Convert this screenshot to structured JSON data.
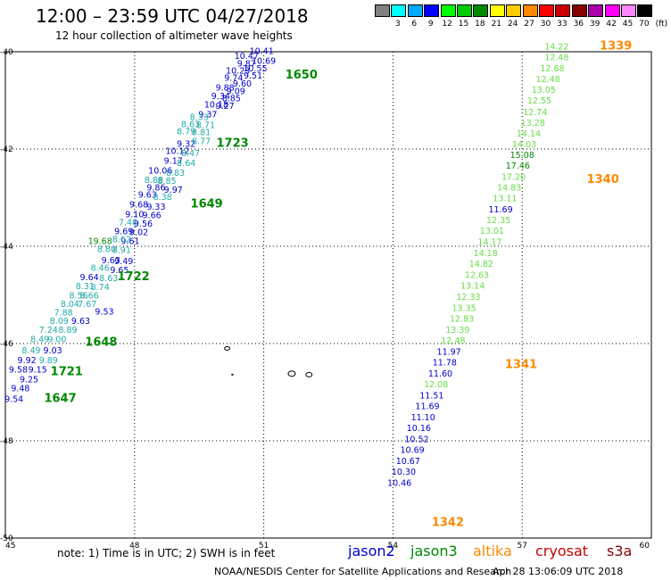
{
  "header": {
    "title": "12:00 – 23:59 UTC 04/27/2018",
    "subtitle": "12 hour collection of altimeter wave heights"
  },
  "color_scale": {
    "unit": "(ft)",
    "colors": [
      "#808080",
      "#00ffff",
      "#00aaff",
      "#0000ff",
      "#00ff00",
      "#00cc00",
      "#008800",
      "#ffff00",
      "#ffcc00",
      "#ff8800",
      "#ff0000",
      "#cc0000",
      "#880000",
      "#aa00aa",
      "#ff00ff",
      "#ff88ff",
      "#000000"
    ],
    "ticks": [
      "3",
      "6",
      "9",
      "12",
      "15",
      "18",
      "21",
      "24",
      "27",
      "30",
      "33",
      "36",
      "39",
      "42",
      "45",
      "70"
    ]
  },
  "axes": {
    "x_ticks": [
      "45",
      "48",
      "51",
      "54",
      "57",
      "60"
    ],
    "y_ticks": [
      "-40",
      "-42",
      "-44",
      "-46",
      "-48",
      "-50"
    ],
    "xlim": [
      45,
      60
    ],
    "ylim": [
      -50,
      -40
    ]
  },
  "series_colors": {
    "jason2": "#0000cc",
    "jason3": "#008800",
    "altika": "#ff8800",
    "cryosat": "#cc0000",
    "s3a": "#880000",
    "jason3_light": "#22aaaa",
    "swh_green": "#33cc33",
    "pass_label_green": "#008800"
  },
  "passes": {
    "pass_1650": {
      "label": "1650",
      "lon": 51.5,
      "lat": -40.55,
      "label_color": "#008800"
    },
    "pass_1723": {
      "label": "1723",
      "lon": 49.9,
      "lat": -41.95,
      "label_color": "#008800"
    },
    "pass_1649": {
      "label": "1649",
      "lon": 49.3,
      "lat": -43.2,
      "label_color": "#008800"
    },
    "pass_1722": {
      "label": "1722",
      "lon": 47.6,
      "lat": -44.7,
      "label_color": "#008800"
    },
    "pass_1648": {
      "label": "1648",
      "lon": 46.85,
      "lat": -46.05,
      "label_color": "#008800"
    },
    "pass_1721": {
      "label": "1721",
      "lon": 46.05,
      "lat": -46.65,
      "label_color": "#008800"
    },
    "pass_1647": {
      "label": "1647",
      "lon": 45.9,
      "lat": -47.2,
      "label_color": "#008800"
    },
    "pass_1339": {
      "label": "1339",
      "lon": 58.8,
      "lat": -39.95,
      "label_color": "#ff8800"
    },
    "pass_1340": {
      "label": "1340",
      "lon": 58.5,
      "lat": -42.7,
      "label_color": "#ff8800"
    },
    "pass_1341": {
      "label": "1341",
      "lon": 56.6,
      "lat": -46.5,
      "label_color": "#ff8800"
    },
    "pass_1342": {
      "label": "1342",
      "lon": 54.9,
      "lat": -49.75,
      "label_color": "#ff8800"
    }
  },
  "track_values": {
    "west_blue": [
      {
        "v": "10.41",
        "lon": 50.95,
        "lat": -40.05,
        "c": "#0000cc"
      },
      {
        "v": "10.47",
        "lon": 50.6,
        "lat": -40.15,
        "c": "#0000cc"
      },
      {
        "v": "10.69",
        "lon": 51.0,
        "lat": -40.25,
        "c": "#0000cc"
      },
      {
        "v": "9.87",
        "lon": 50.6,
        "lat": -40.3,
        "c": "#0000cc"
      },
      {
        "v": "10.23",
        "lon": 50.4,
        "lat": -40.45,
        "c": "#0000cc"
      },
      {
        "v": "10.55",
        "lon": 50.8,
        "lat": -40.4,
        "c": "#0000cc"
      },
      {
        "v": "9.74",
        "lon": 50.3,
        "lat": -40.6,
        "c": "#0000cc"
      },
      {
        "v": "9.51",
        "lon": 50.75,
        "lat": -40.55,
        "c": "#0000cc"
      },
      {
        "v": "9.60",
        "lon": 50.5,
        "lat": -40.72,
        "c": "#0000cc"
      },
      {
        "v": "9.88",
        "lon": 50.1,
        "lat": -40.8,
        "c": "#0000cc"
      },
      {
        "v": "9.09",
        "lon": 50.35,
        "lat": -40.87,
        "c": "#0000cc"
      },
      {
        "v": "9.34",
        "lon": 50.0,
        "lat": -40.97,
        "c": "#0000cc"
      },
      {
        "v": "8.85",
        "lon": 50.25,
        "lat": -41.02,
        "c": "#0000cc"
      },
      {
        "v": "10.18",
        "lon": 49.9,
        "lat": -41.15,
        "c": "#0000cc"
      },
      {
        "v": "9.27",
        "lon": 50.1,
        "lat": -41.17,
        "c": "#0000cc"
      },
      {
        "v": "9.37",
        "lon": 49.7,
        "lat": -41.35,
        "c": "#0000cc"
      },
      {
        "v": "9.32",
        "lon": 49.2,
        "lat": -41.95,
        "c": "#0000cc"
      },
      {
        "v": "10.12",
        "lon": 49.0,
        "lat": -42.1,
        "c": "#0000cc"
      },
      {
        "v": "9.17",
        "lon": 48.9,
        "lat": -42.3,
        "c": "#0000cc"
      },
      {
        "v": "10.06",
        "lon": 48.6,
        "lat": -42.5,
        "c": "#0000cc"
      },
      {
        "v": "9.86",
        "lon": 48.5,
        "lat": -42.85,
        "c": "#0000cc"
      },
      {
        "v": "9.97",
        "lon": 48.9,
        "lat": -42.9,
        "c": "#0000cc"
      },
      {
        "v": "9.63",
        "lon": 48.3,
        "lat": -43.0,
        "c": "#0000cc"
      },
      {
        "v": "9.68",
        "lon": 48.1,
        "lat": -43.2,
        "c": "#0000cc"
      },
      {
        "v": "9.33",
        "lon": 48.5,
        "lat": -43.25,
        "c": "#0000cc"
      },
      {
        "v": "9.10",
        "lon": 48.0,
        "lat": -43.4,
        "c": "#0000cc"
      },
      {
        "v": "9.66",
        "lon": 48.4,
        "lat": -43.42,
        "c": "#0000cc"
      },
      {
        "v": "9.56",
        "lon": 48.2,
        "lat": -43.6,
        "c": "#0000cc"
      },
      {
        "v": "9.69",
        "lon": 47.75,
        "lat": -43.75,
        "c": "#0000cc"
      },
      {
        "v": "9.02",
        "lon": 48.1,
        "lat": -43.77,
        "c": "#0000cc"
      },
      {
        "v": "9.61",
        "lon": 47.9,
        "lat": -43.95,
        "c": "#0000cc"
      },
      {
        "v": "9.63",
        "lon": 47.45,
        "lat": -44.35,
        "c": "#0000cc"
      },
      {
        "v": "9.49",
        "lon": 47.75,
        "lat": -44.37,
        "c": "#0000cc"
      },
      {
        "v": "9.65",
        "lon": 47.65,
        "lat": -44.55,
        "c": "#0000cc"
      },
      {
        "v": "9.64",
        "lon": 46.95,
        "lat": -44.7,
        "c": "#0000cc"
      },
      {
        "v": "9.53",
        "lon": 47.3,
        "lat": -45.4,
        "c": "#0000cc"
      },
      {
        "v": "9.63",
        "lon": 46.75,
        "lat": -45.6,
        "c": "#0000cc"
      },
      {
        "v": "9.03",
        "lon": 46.1,
        "lat": -46.2,
        "c": "#0000cc"
      },
      {
        "v": "9.92",
        "lon": 45.5,
        "lat": -46.4,
        "c": "#0000cc"
      },
      {
        "v": "9.58",
        "lon": 45.3,
        "lat": -46.6,
        "c": "#0000cc"
      },
      {
        "v": "9.15",
        "lon": 45.75,
        "lat": -46.6,
        "c": "#0000cc"
      },
      {
        "v": "9.25",
        "lon": 45.55,
        "lat": -46.8,
        "c": "#0000cc"
      },
      {
        "v": "9.48",
        "lon": 45.35,
        "lat": -46.98,
        "c": "#0000cc"
      },
      {
        "v": "9.54",
        "lon": 45.2,
        "lat": -47.2,
        "c": "#0000cc"
      }
    ],
    "west_cyan": [
      {
        "v": "8.33",
        "lon": 49.5,
        "lat": -41.4,
        "c": "#22aaaa"
      },
      {
        "v": "8.63",
        "lon": 49.3,
        "lat": -41.55,
        "c": "#22aaaa"
      },
      {
        "v": "8.71",
        "lon": 49.65,
        "lat": -41.57,
        "c": "#22aaaa"
      },
      {
        "v": "8.79",
        "lon": 49.2,
        "lat": -41.7,
        "c": "#22aaaa"
      },
      {
        "v": "8.81",
        "lon": 49.55,
        "lat": -41.72,
        "c": "#22aaaa"
      },
      {
        "v": "8.77",
        "lon": 49.55,
        "lat": -41.9,
        "c": "#22aaaa"
      },
      {
        "v": "8.47",
        "lon": 49.3,
        "lat": -42.15,
        "c": "#22aaaa"
      },
      {
        "v": "8.64",
        "lon": 49.2,
        "lat": -42.35,
        "c": "#22aaaa"
      },
      {
        "v": "8.83",
        "lon": 48.95,
        "lat": -42.55,
        "c": "#22aaaa"
      },
      {
        "v": "8.88",
        "lon": 48.45,
        "lat": -42.7,
        "c": "#22aaaa"
      },
      {
        "v": "8.85",
        "lon": 48.75,
        "lat": -42.72,
        "c": "#22aaaa"
      },
      {
        "v": "8.38",
        "lon": 48.65,
        "lat": -43.05,
        "c": "#22aaaa"
      },
      {
        "v": "7.40",
        "lon": 47.85,
        "lat": -43.57,
        "c": "#22aaaa"
      },
      {
        "v": "8.62",
        "lon": 47.7,
        "lat": -43.92,
        "c": "#22aaaa"
      },
      {
        "v": "8.80",
        "lon": 47.35,
        "lat": -44.12,
        "c": "#22aaaa"
      },
      {
        "v": "8.91",
        "lon": 47.7,
        "lat": -44.14,
        "c": "#22aaaa"
      },
      {
        "v": "8.46",
        "lon": 47.2,
        "lat": -44.5,
        "c": "#22aaaa"
      },
      {
        "v": "8.63",
        "lon": 47.4,
        "lat": -44.72,
        "c": "#22aaaa"
      },
      {
        "v": "8.74",
        "lon": 47.2,
        "lat": -44.9,
        "c": "#22aaaa"
      },
      {
        "v": "8.31",
        "lon": 46.85,
        "lat": -44.88,
        "c": "#22aaaa"
      },
      {
        "v": "8.56",
        "lon": 46.7,
        "lat": -45.07,
        "c": "#22aaaa"
      },
      {
        "v": "8.66",
        "lon": 46.95,
        "lat": -45.07,
        "c": "#22aaaa"
      },
      {
        "v": "8.04",
        "lon": 46.5,
        "lat": -45.25,
        "c": "#22aaaa"
      },
      {
        "v": "7.67",
        "lon": 46.9,
        "lat": -45.25,
        "c": "#22aaaa"
      },
      {
        "v": "7.88",
        "lon": 46.35,
        "lat": -45.42,
        "c": "#22aaaa"
      },
      {
        "v": "8.09",
        "lon": 46.25,
        "lat": -45.6,
        "c": "#22aaaa"
      },
      {
        "v": "7.24",
        "lon": 46.0,
        "lat": -45.78,
        "c": "#22aaaa"
      },
      {
        "v": "8.89",
        "lon": 46.45,
        "lat": -45.78,
        "c": "#22aaaa"
      },
      {
        "v": "8.49",
        "lon": 45.8,
        "lat": -45.97,
        "c": "#22aaaa"
      },
      {
        "v": "9.00",
        "lon": 46.2,
        "lat": -45.97,
        "c": "#22aaaa"
      },
      {
        "v": "8.49",
        "lon": 45.6,
        "lat": -46.2,
        "c": "#22aaaa"
      },
      {
        "v": "9.89",
        "lon": 46.0,
        "lat": -46.4,
        "c": "#22aaaa"
      }
    ],
    "west_green": [
      {
        "v": "19.68",
        "lon": 47.2,
        "lat": -43.95,
        "c": "#008800"
      }
    ],
    "east_green": [
      {
        "v": "14.22",
        "lon": 57.8,
        "lat": -39.95,
        "c": "#66dd44"
      },
      {
        "v": "12.48",
        "lon": 57.8,
        "lat": -40.17,
        "c": "#66dd44"
      },
      {
        "v": "12.68",
        "lon": 57.7,
        "lat": -40.4,
        "c": "#66dd44"
      },
      {
        "v": "12.48",
        "lon": 57.6,
        "lat": -40.62,
        "c": "#66dd44"
      },
      {
        "v": "13.05",
        "lon": 57.5,
        "lat": -40.84,
        "c": "#66dd44"
      },
      {
        "v": "12.55",
        "lon": 57.4,
        "lat": -41.06,
        "c": "#66dd44"
      },
      {
        "v": "12.74",
        "lon": 57.3,
        "lat": -41.3,
        "c": "#66dd44"
      },
      {
        "v": "13.28",
        "lon": 57.25,
        "lat": -41.52,
        "c": "#66dd44"
      },
      {
        "v": "14.14",
        "lon": 57.15,
        "lat": -41.74,
        "c": "#66dd44"
      },
      {
        "v": "14.03",
        "lon": 57.05,
        "lat": -41.96,
        "c": "#66dd44"
      },
      {
        "v": "15.08",
        "lon": 57.0,
        "lat": -42.18,
        "c": "#008800"
      },
      {
        "v": "17.46",
        "lon": 56.9,
        "lat": -42.4,
        "c": "#008800"
      },
      {
        "v": "17.20",
        "lon": 56.8,
        "lat": -42.63,
        "c": "#66dd44"
      },
      {
        "v": "14.83",
        "lon": 56.7,
        "lat": -42.85,
        "c": "#66dd44"
      },
      {
        "v": "13.11",
        "lon": 56.6,
        "lat": -43.07,
        "c": "#66dd44"
      },
      {
        "v": "11.69",
        "lon": 56.5,
        "lat": -43.3,
        "c": "#0000cc"
      },
      {
        "v": "12.35",
        "lon": 56.45,
        "lat": -43.52,
        "c": "#66dd44"
      },
      {
        "v": "13.01",
        "lon": 56.3,
        "lat": -43.74,
        "c": "#66dd44"
      },
      {
        "v": "14.17",
        "lon": 56.25,
        "lat": -43.97,
        "c": "#66dd44"
      },
      {
        "v": "14.18",
        "lon": 56.15,
        "lat": -44.2,
        "c": "#66dd44"
      },
      {
        "v": "14.82",
        "lon": 56.05,
        "lat": -44.42,
        "c": "#66dd44"
      },
      {
        "v": "12.63",
        "lon": 55.95,
        "lat": -44.65,
        "c": "#66dd44"
      },
      {
        "v": "13.14",
        "lon": 55.85,
        "lat": -44.87,
        "c": "#66dd44"
      },
      {
        "v": "12.33",
        "lon": 55.75,
        "lat": -45.1,
        "c": "#66dd44"
      },
      {
        "v": "13.35",
        "lon": 55.65,
        "lat": -45.33,
        "c": "#66dd44"
      },
      {
        "v": "12.83",
        "lon": 55.6,
        "lat": -45.55,
        "c": "#66dd44"
      },
      {
        "v": "13.39",
        "lon": 55.5,
        "lat": -45.78,
        "c": "#66dd44"
      },
      {
        "v": "12.48",
        "lon": 55.4,
        "lat": -46.0,
        "c": "#66dd44"
      },
      {
        "v": "11.97",
        "lon": 55.3,
        "lat": -46.23,
        "c": "#0000cc"
      },
      {
        "v": "11.78",
        "lon": 55.2,
        "lat": -46.45,
        "c": "#0000cc"
      },
      {
        "v": "11.60",
        "lon": 55.1,
        "lat": -46.68,
        "c": "#0000cc"
      },
      {
        "v": "12.08",
        "lon": 55.0,
        "lat": -46.9,
        "c": "#66dd44"
      },
      {
        "v": "11.51",
        "lon": 54.9,
        "lat": -47.13,
        "c": "#0000cc"
      },
      {
        "v": "11.69",
        "lon": 54.8,
        "lat": -47.35,
        "c": "#0000cc"
      },
      {
        "v": "11.10",
        "lon": 54.7,
        "lat": -47.58,
        "c": "#0000cc"
      },
      {
        "v": "10.16",
        "lon": 54.6,
        "lat": -47.8,
        "c": "#0000cc"
      },
      {
        "v": "10.52",
        "lon": 54.55,
        "lat": -48.03,
        "c": "#0000cc"
      },
      {
        "v": "10.69",
        "lon": 54.45,
        "lat": -48.25,
        "c": "#0000cc"
      },
      {
        "v": "10.67",
        "lon": 54.35,
        "lat": -48.48,
        "c": "#0000cc"
      },
      {
        "v": "10.30",
        "lon": 54.25,
        "lat": -48.7,
        "c": "#0000cc"
      },
      {
        "v": "10.46",
        "lon": 54.15,
        "lat": -48.93,
        "c": "#0000cc"
      }
    ]
  },
  "footer": {
    "note": "note:  1) Time is in UTC;  2) SWH is in feet",
    "legend": [
      {
        "label": "jason2",
        "color": "#0000cc"
      },
      {
        "label": "jason3",
        "color": "#008800"
      },
      {
        "label": "altika",
        "color": "#ff8800"
      },
      {
        "label": "cryosat",
        "color": "#cc0000"
      },
      {
        "label": "s3a",
        "color": "#880000"
      }
    ],
    "credit": "NOAA/NESDIS Center for Satellite Applications and Research",
    "timestamp": "Apr 28 13:06:09 UTC 2018"
  }
}
